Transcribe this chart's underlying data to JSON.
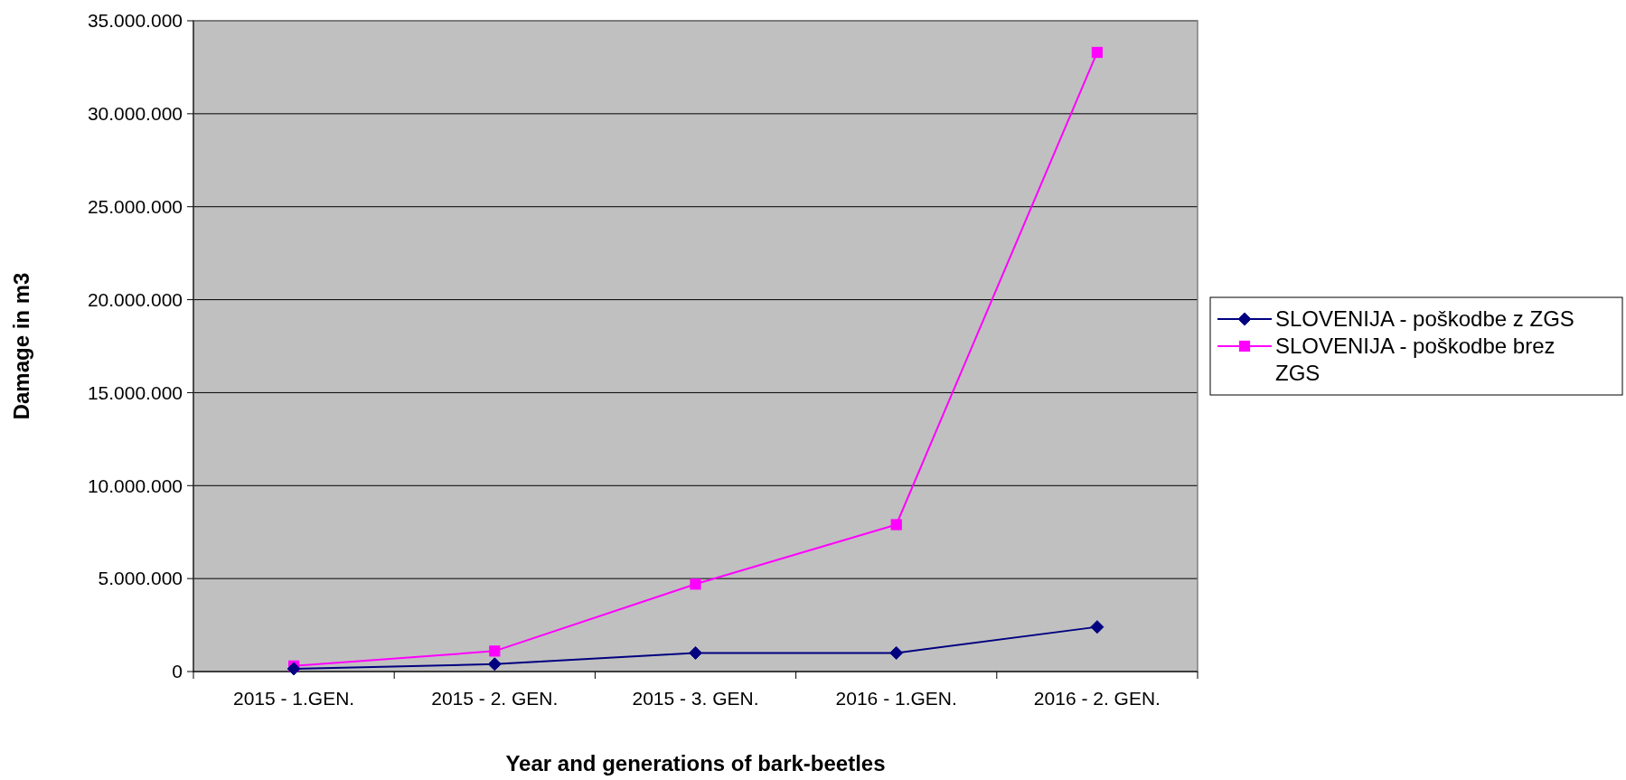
{
  "chart_data": {
    "type": "line",
    "xlabel": "Year and generations of bark-beetles",
    "ylabel": "Damage in m3",
    "categories": [
      "2015 - 1.GEN.",
      "2015 - 2. GEN.",
      "2015 - 3. GEN.",
      "2016 - 1.GEN.",
      "2016 - 2. GEN."
    ],
    "series": [
      {
        "name": "SLOVENIJA - poškodbe z ZGS",
        "color": "#000080",
        "marker": "diamond",
        "values": [
          150000,
          400000,
          1000000,
          1000000,
          2400000
        ]
      },
      {
        "name": "SLOVENIJA - poškodbe brez ZGS",
        "color": "#ff00ff",
        "marker": "square",
        "values": [
          300000,
          1100000,
          4700000,
          7900000,
          33300000
        ]
      }
    ],
    "ylim": [
      0,
      35000000
    ],
    "yticks": [
      0,
      {
        "value": 5000000,
        "label": "5.000.000"
      },
      {
        "value": 10000000,
        "label": "10.000.000"
      },
      {
        "value": 15000000,
        "label": "15.000.000"
      },
      {
        "value": 20000000,
        "label": "20.000.000"
      },
      {
        "value": 25000000,
        "label": "25.000.000"
      },
      {
        "value": 30000000,
        "label": "30.000.000"
      },
      {
        "value": 35000000,
        "label": "35.000.000"
      }
    ],
    "grid": "y",
    "legend": "right",
    "line_style": "solid"
  }
}
